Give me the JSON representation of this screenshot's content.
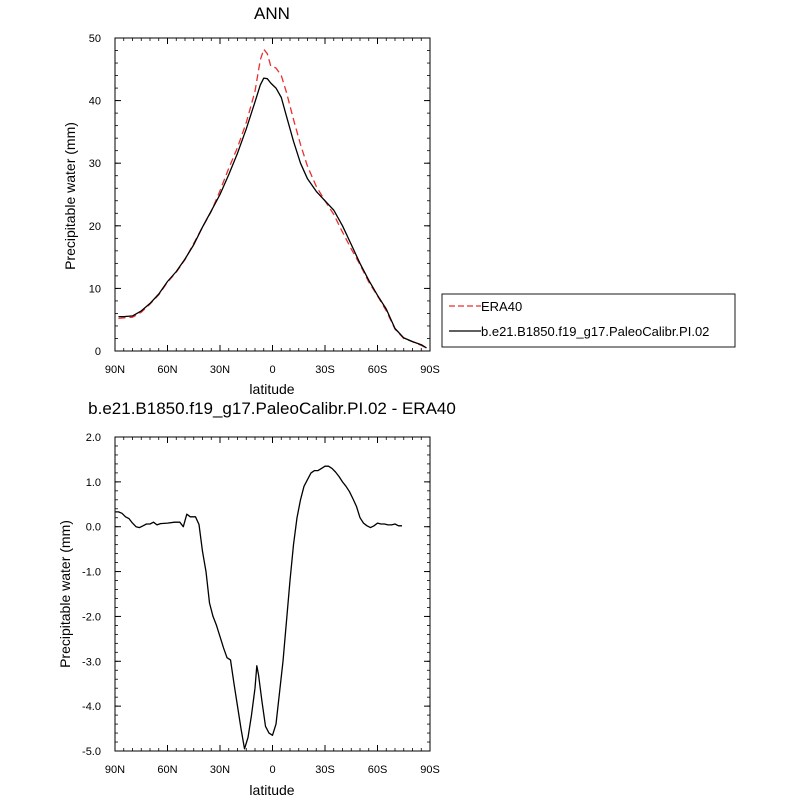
{
  "chart_data": [
    {
      "type": "line",
      "title": "ANN",
      "xlabel": "latitude",
      "ylabel": "Precipitable water (mm)",
      "xlim": [
        90,
        -90
      ],
      "ylim": [
        0,
        50
      ],
      "xticks": [
        90,
        60,
        30,
        0,
        -30,
        -60,
        -90
      ],
      "xtick_labels": [
        "90N",
        "60N",
        "30N",
        "0",
        "30S",
        "60S",
        "90S"
      ],
      "yticks": [
        0,
        10,
        20,
        30,
        40,
        50
      ],
      "ytick_labels": [
        "0",
        "10",
        "20",
        "30",
        "40",
        "50"
      ],
      "legend_position": "right",
      "series": [
        {
          "name": "ERA40",
          "color": "#e8302f",
          "style": "dashed",
          "points": [
            [
              88,
              5.2
            ],
            [
              85,
              5.3
            ],
            [
              80,
              5.4
            ],
            [
              75,
              6.2
            ],
            [
              70,
              7.5
            ],
            [
              65,
              9.0
            ],
            [
              60,
              11.0
            ],
            [
              55,
              12.6
            ],
            [
              50,
              14.6
            ],
            [
              45,
              17.2
            ],
            [
              40,
              19.8
            ],
            [
              35,
              22.3
            ],
            [
              30,
              25.6
            ],
            [
              25,
              29.2
            ],
            [
              20,
              32.5
            ],
            [
              15,
              36.5
            ],
            [
              10,
              41.5
            ],
            [
              7,
              46.5
            ],
            [
              5,
              48.2
            ],
            [
              3,
              47.5
            ],
            [
              1,
              45.5
            ],
            [
              -2,
              45.2
            ],
            [
              -5,
              44.0
            ],
            [
              -8,
              41.3
            ],
            [
              -12,
              37.0
            ],
            [
              -16,
              33.0
            ],
            [
              -20,
              29.5
            ],
            [
              -25,
              26.3
            ],
            [
              -30,
              24.0
            ],
            [
              -35,
              21.8
            ],
            [
              -40,
              19.0
            ],
            [
              -45,
              16.3
            ],
            [
              -50,
              13.8
            ],
            [
              -55,
              11.0
            ],
            [
              -60,
              8.8
            ],
            [
              -65,
              6.4
            ],
            [
              -70,
              3.5
            ],
            [
              -75,
              2.0
            ],
            [
              -80,
              1.5
            ],
            [
              -85,
              0.9
            ],
            [
              -88,
              0.5
            ]
          ]
        },
        {
          "name": "b.e21.B1850.f19_g17.PaleoCalibr.PI.02",
          "color": "#000000",
          "style": "solid",
          "points": [
            [
              88,
              5.5
            ],
            [
              85,
              5.5
            ],
            [
              80,
              5.6
            ],
            [
              75,
              6.4
            ],
            [
              70,
              7.6
            ],
            [
              65,
              9.1
            ],
            [
              60,
              11.1
            ],
            [
              55,
              12.7
            ],
            [
              50,
              14.7
            ],
            [
              45,
              17.0
            ],
            [
              40,
              19.8
            ],
            [
              35,
              22.4
            ],
            [
              30,
              25.0
            ],
            [
              25,
              28.2
            ],
            [
              20,
              31.6
            ],
            [
              15,
              35.5
            ],
            [
              10,
              39.8
            ],
            [
              7,
              42.5
            ],
            [
              5,
              43.6
            ],
            [
              3,
              43.5
            ],
            [
              1,
              42.8
            ],
            [
              -2,
              42.0
            ],
            [
              -5,
              40.5
            ],
            [
              -8,
              37.5
            ],
            [
              -12,
              33.5
            ],
            [
              -16,
              30.0
            ],
            [
              -20,
              27.5
            ],
            [
              -25,
              25.5
            ],
            [
              -30,
              24.0
            ],
            [
              -35,
              22.5
            ],
            [
              -40,
              20.0
            ],
            [
              -45,
              17.0
            ],
            [
              -50,
              14.0
            ],
            [
              -55,
              11.3
            ],
            [
              -60,
              8.9
            ],
            [
              -65,
              6.7
            ],
            [
              -70,
              3.6
            ],
            [
              -75,
              2.1
            ],
            [
              -80,
              1.5
            ],
            [
              -85,
              1.0
            ],
            [
              -88,
              0.5
            ]
          ]
        }
      ]
    },
    {
      "type": "line",
      "title": "b.e21.B1850.f19_g17.PaleoCalibr.PI.02 - ERA40",
      "xlabel": "latitude",
      "ylabel": "Precipitable water (mm)",
      "xlim": [
        90,
        -90
      ],
      "ylim": [
        -5,
        2
      ],
      "xticks": [
        90,
        60,
        30,
        0,
        -30,
        -60,
        -90
      ],
      "xtick_labels": [
        "90N",
        "60N",
        "30N",
        "0",
        "30S",
        "60S",
        "90S"
      ],
      "yticks": [
        2,
        1,
        0,
        -1,
        -2,
        -3,
        -4,
        -5
      ],
      "ytick_labels": [
        "2.0",
        "1.0",
        "0.0",
        "-1.0",
        "-2.0",
        "-3.0",
        "-4.0",
        "-5.0"
      ],
      "series": [
        {
          "name": "",
          "color": "#000000",
          "style": "solid",
          "points": [
            [
              90,
              0.33
            ],
            [
              88,
              0.33
            ],
            [
              86,
              0.3
            ],
            [
              84,
              0.22
            ],
            [
              82,
              0.18
            ],
            [
              80,
              0.08
            ],
            [
              78,
              0.0
            ],
            [
              76,
              -0.02
            ],
            [
              74,
              0.02
            ],
            [
              72,
              0.06
            ],
            [
              70,
              0.06
            ],
            [
              68,
              0.1
            ],
            [
              66,
              0.04
            ],
            [
              64,
              0.07
            ],
            [
              60,
              0.08
            ],
            [
              56,
              0.1
            ],
            [
              53,
              0.1
            ],
            [
              51,
              0.0
            ],
            [
              49,
              0.28
            ],
            [
              47,
              0.22
            ],
            [
              44,
              0.22
            ],
            [
              42,
              0.05
            ],
            [
              40,
              -0.55
            ],
            [
              38,
              -1.0
            ],
            [
              36,
              -1.7
            ],
            [
              34,
              -2.0
            ],
            [
              32,
              -2.2
            ],
            [
              30,
              -2.45
            ],
            [
              28,
              -2.7
            ],
            [
              26,
              -2.92
            ],
            [
              24,
              -2.97
            ],
            [
              22,
              -3.5
            ],
            [
              20,
              -4.0
            ],
            [
              18,
              -4.5
            ],
            [
              16,
              -4.95
            ],
            [
              14,
              -4.7
            ],
            [
              12,
              -4.2
            ],
            [
              10,
              -3.6
            ],
            [
              9,
              -3.1
            ],
            [
              8,
              -3.3
            ],
            [
              6,
              -3.9
            ],
            [
              4,
              -4.45
            ],
            [
              2,
              -4.6
            ],
            [
              0,
              -4.65
            ],
            [
              -2,
              -4.4
            ],
            [
              -4,
              -3.7
            ],
            [
              -6,
              -3.0
            ],
            [
              -8,
              -2.1
            ],
            [
              -10,
              -1.2
            ],
            [
              -12,
              -0.4
            ],
            [
              -14,
              0.2
            ],
            [
              -16,
              0.6
            ],
            [
              -18,
              0.9
            ],
            [
              -20,
              1.05
            ],
            [
              -22,
              1.2
            ],
            [
              -24,
              1.25
            ],
            [
              -26,
              1.25
            ],
            [
              -28,
              1.3
            ],
            [
              -30,
              1.35
            ],
            [
              -32,
              1.35
            ],
            [
              -34,
              1.3
            ],
            [
              -36,
              1.22
            ],
            [
              -38,
              1.12
            ],
            [
              -40,
              1.0
            ],
            [
              -42,
              0.9
            ],
            [
              -44,
              0.78
            ],
            [
              -46,
              0.62
            ],
            [
              -48,
              0.45
            ],
            [
              -50,
              0.2
            ],
            [
              -52,
              0.08
            ],
            [
              -54,
              0.02
            ],
            [
              -56,
              -0.02
            ],
            [
              -58,
              0.02
            ],
            [
              -60,
              0.08
            ],
            [
              -62,
              0.06
            ],
            [
              -64,
              0.06
            ],
            [
              -66,
              0.04
            ],
            [
              -68,
              0.04
            ],
            [
              -70,
              0.06
            ],
            [
              -72,
              0.02
            ],
            [
              -74,
              0.02
            ]
          ]
        }
      ]
    }
  ]
}
